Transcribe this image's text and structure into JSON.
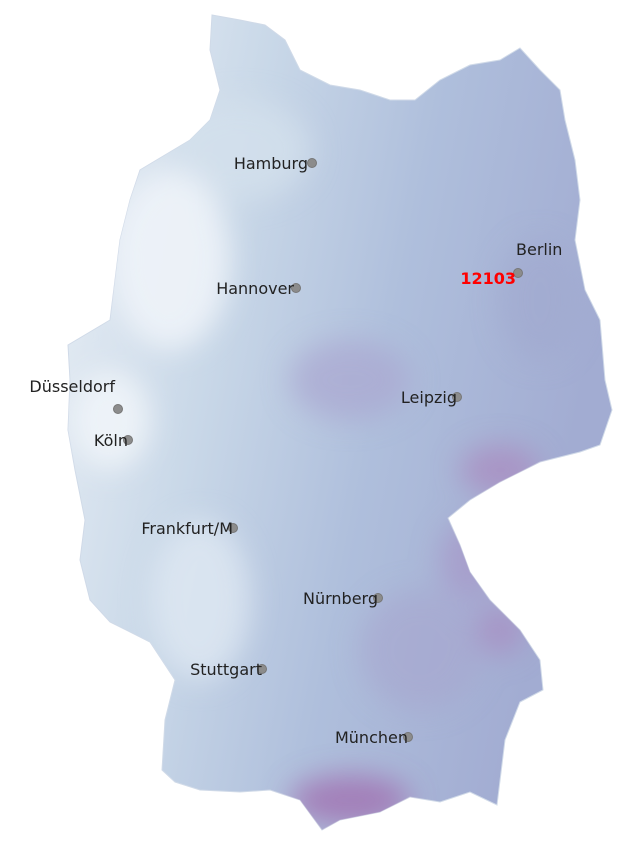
{
  "map": {
    "region": "Germany",
    "fill_colors": {
      "low": "#e6edf5",
      "mid": "#b3c5df",
      "high": "#a3aed3",
      "peak": "#a070b0"
    },
    "marker_color": "#8c8c8c",
    "highlight": {
      "label": "12103",
      "color": "#ff0000"
    },
    "cities": [
      {
        "name": "Hamburg"
      },
      {
        "name": "Berlin"
      },
      {
        "name": "Hannover"
      },
      {
        "name": "Düsseldorf"
      },
      {
        "name": "Köln"
      },
      {
        "name": "Leipzig"
      },
      {
        "name": "Frankfurt/M"
      },
      {
        "name": "Nürnberg"
      },
      {
        "name": "Stuttgart"
      },
      {
        "name": "München"
      }
    ]
  }
}
